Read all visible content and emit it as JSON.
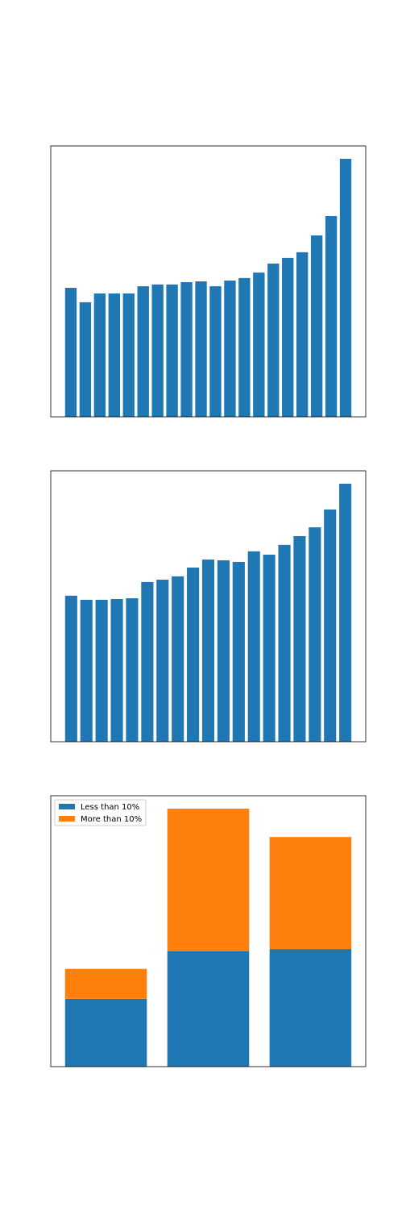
{
  "chart_data": [
    {
      "type": "bar",
      "values": [
        50,
        44.4,
        47.8,
        47.8,
        47.8,
        50.6,
        51.3,
        51.3,
        52.2,
        52.5,
        50.6,
        52.8,
        53.8,
        55.9,
        59.4,
        61.6,
        63.8,
        70.3,
        77.8,
        100
      ],
      "color": "#1f77b4",
      "ylim": [
        0,
        105
      ]
    },
    {
      "type": "bar",
      "values": [
        56.6,
        55,
        55,
        55.3,
        55.6,
        61.9,
        62.8,
        64.1,
        67.5,
        70.6,
        70.3,
        69.7,
        73.8,
        72.5,
        76.3,
        79.7,
        83.1,
        90,
        100
      ],
      "color": "#1f77b4",
      "ylim": [
        0,
        105
      ]
    },
    {
      "type": "stacked_bar",
      "series": [
        {
          "name": "Less than 10%",
          "color": "#1f77b4",
          "values": [
            26.3,
            44.7,
            45.6
          ]
        },
        {
          "name": "More than 10%",
          "color": "#ff7f0e",
          "values": [
            11.6,
            55.3,
            43.4
          ]
        }
      ],
      "ylim": [
        0,
        105
      ],
      "legend": "upper left"
    }
  ]
}
